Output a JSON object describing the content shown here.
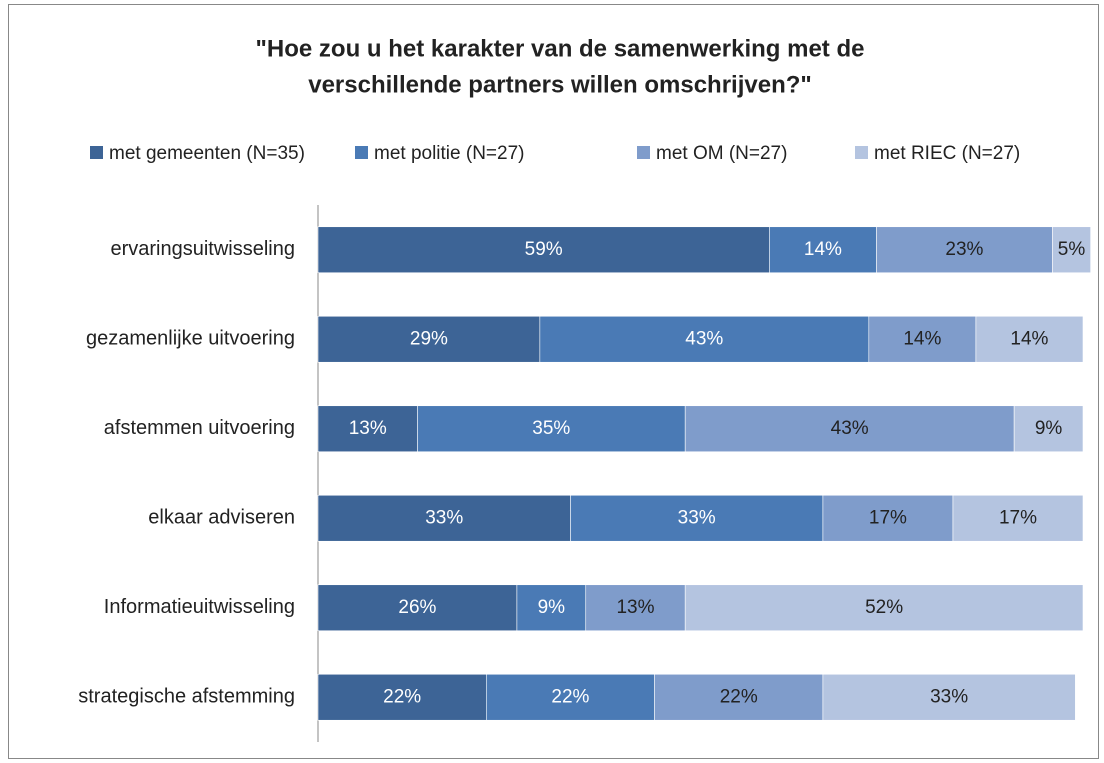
{
  "chart_data": {
    "type": "stacked_barh",
    "title": [
      "\"Hoe zou u het karakter van de samenwerking  met de",
      "verschillende partners willen omschrijven?\""
    ],
    "categories": [
      "ervaringsuitwisseling",
      "gezamenlijke uitvoering",
      "afstemmen uitvoering",
      "elkaar adviseren",
      "Informatieuitwisseling",
      "strategische afstemming"
    ],
    "series": [
      {
        "name": "met gemeenten (N=35)",
        "color": "#3d6496",
        "values": [
          59,
          29,
          13,
          33,
          26,
          22
        ],
        "value_labels": [
          "59%",
          "29%",
          "13%",
          "33%",
          "26%",
          "22%"
        ]
      },
      {
        "name": "met politie (N=27)",
        "color": "#4a7ab5",
        "values": [
          14,
          43,
          35,
          33,
          9,
          22
        ],
        "value_labels": [
          "14%",
          "43%",
          "35%",
          "33%",
          "9%",
          "22%"
        ]
      },
      {
        "name": "met OM (N=27)",
        "color": "#7f9ccb",
        "values": [
          23,
          14,
          43,
          17,
          13,
          22
        ],
        "value_labels": [
          "23%",
          "14%",
          "43%",
          "17%",
          "13%",
          "22%"
        ]
      },
      {
        "name": "met RIEC (N=27)",
        "color": "#b4c4e0",
        "values": [
          5,
          14,
          9,
          17,
          52,
          33
        ],
        "value_labels": [
          "5%",
          "14%",
          "9%",
          "17%",
          "52%",
          "33%"
        ]
      }
    ],
    "xlim": [
      0,
      100
    ],
    "legend": "top"
  }
}
